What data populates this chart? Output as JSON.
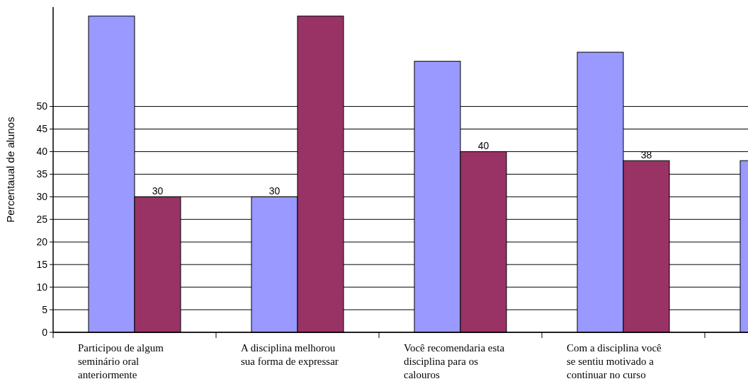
{
  "chart_data": {
    "type": "bar",
    "ylabel": "Percentaual de alunos",
    "categories": [
      "Participou de algum seminário oral anteriormente",
      "A disciplina melhorou sua forma de expressar",
      "Você recomendaria esta disciplina para os calouros",
      "Com a disciplina você se sentiu motivado a continuar no curso",
      null
    ],
    "series": [
      {
        "color": "#9999ff",
        "values": [
          70,
          30,
          60,
          62,
          38
        ],
        "value_labels": [
          null,
          "30",
          null,
          null,
          null
        ]
      },
      {
        "color": "#993366",
        "values": [
          30,
          70,
          40,
          38,
          null
        ],
        "value_labels": [
          "30",
          null,
          "40",
          "38",
          null
        ]
      }
    ],
    "ylim": [
      0,
      72
    ],
    "yticks": [
      0,
      5,
      10,
      15,
      20,
      25,
      30,
      35,
      40,
      45,
      50
    ],
    "grid": "y"
  }
}
